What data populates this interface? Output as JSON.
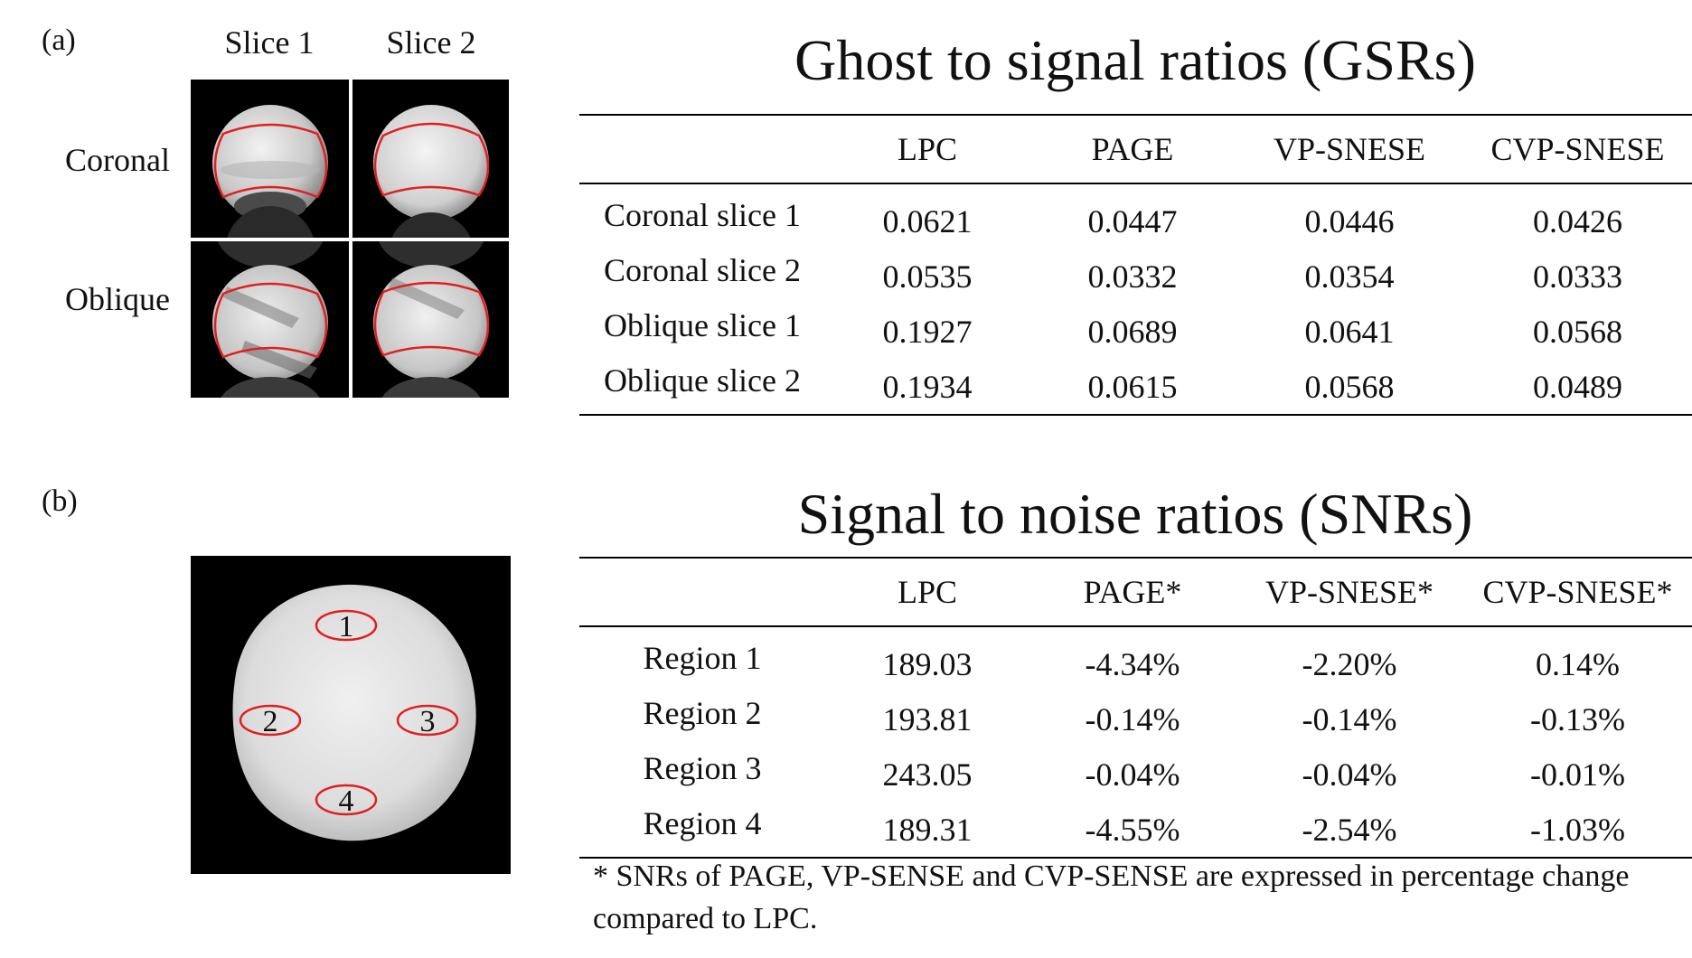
{
  "panel_a": {
    "label": "(a)",
    "columns": [
      "Slice 1",
      "Slice 2"
    ],
    "rows": [
      "Coronal",
      "Oblique"
    ]
  },
  "panel_b": {
    "label": "(b)",
    "regions": [
      "1",
      "2",
      "3",
      "4"
    ]
  },
  "gsr_table": {
    "title": "Ghost to signal ratios (GSRs)",
    "headers": [
      "",
      "LPC",
      "PAGE",
      "VP-SNESE",
      "CVP-SNESE"
    ],
    "rows": [
      {
        "label": "Coronal  slice 1",
        "values": [
          "0.0621",
          "0.0447",
          "0.0446",
          "0.0426"
        ]
      },
      {
        "label": "Coronal  slice 2",
        "values": [
          "0.0535",
          "0.0332",
          "0.0354",
          "0.0333"
        ]
      },
      {
        "label": "Oblique slice 1",
        "values": [
          "0.1927",
          "0.0689",
          "0.0641",
          "0.0568"
        ]
      },
      {
        "label": "Oblique slice 2",
        "values": [
          "0.1934",
          "0.0615",
          "0.0568",
          "0.0489"
        ]
      }
    ]
  },
  "snr_table": {
    "title": "Signal to noise ratios (SNRs)",
    "headers": [
      "",
      "LPC",
      "PAGE*",
      "VP-SNESE*",
      "CVP-SNESE*"
    ],
    "rows": [
      {
        "label": "Region 1",
        "values": [
          "189.03",
          "-4.34%",
          "-2.20%",
          "0.14%"
        ]
      },
      {
        "label": "Region 2",
        "values": [
          "193.81",
          "-0.14%",
          "-0.14%",
          "-0.13%"
        ]
      },
      {
        "label": "Region 3",
        "values": [
          "243.05",
          "-0.04%",
          "-0.04%",
          "-0.01%"
        ]
      },
      {
        "label": "Region 4",
        "values": [
          "189.31",
          "-4.55%",
          "-2.54%",
          "-1.03%"
        ]
      }
    ],
    "footnote": "* SNRs of PAGE, VP-SENSE and CVP-SENSE are expressed in percentage change compared to LPC."
  },
  "colors": {
    "contour": "#e02020",
    "rule": "#000000"
  }
}
